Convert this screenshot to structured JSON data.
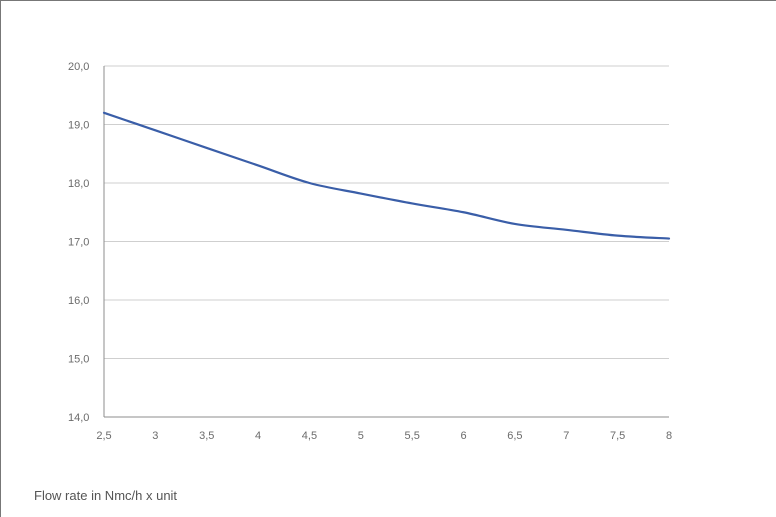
{
  "chart_data": {
    "type": "line",
    "title": "",
    "xlabel": "Flow rate in Nmc/h x unit",
    "ylabel": "",
    "x_ticks": [
      "2,5",
      "3",
      "3,5",
      "4",
      "4,5",
      "5",
      "5,5",
      "6",
      "6,5",
      "7",
      "7,5",
      "8"
    ],
    "y_ticks": [
      "14,0",
      "15,0",
      "16,0",
      "17,0",
      "18,0",
      "19,0",
      "20,0"
    ],
    "xlim": [
      2.5,
      8
    ],
    "ylim": [
      14,
      20
    ],
    "grid": true,
    "legend": "none",
    "series": [
      {
        "x": [
          2.5,
          3,
          3.5,
          4,
          4.5,
          5,
          5.5,
          6,
          6.5,
          7,
          7.5,
          8
        ],
        "values": [
          19.2,
          18.9,
          18.6,
          18.3,
          18.0,
          17.82,
          17.65,
          17.5,
          17.3,
          17.2,
          17.1,
          17.05
        ],
        "color": "#3a5ea8"
      }
    ]
  }
}
